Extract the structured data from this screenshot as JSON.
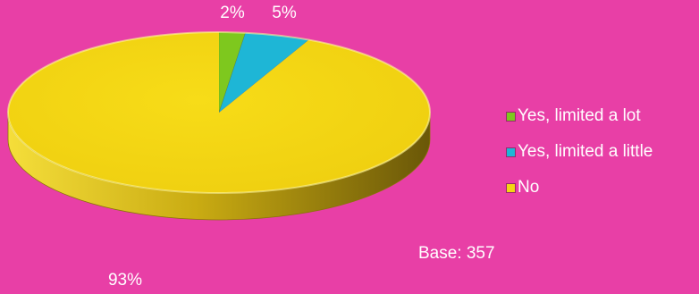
{
  "chart_data": {
    "type": "pie",
    "categories": [
      "Yes, limited a lot",
      "Yes, limited a little",
      "No"
    ],
    "values": [
      2,
      5,
      93
    ],
    "data_labels": [
      "2%",
      "5%",
      "93%"
    ],
    "colors": [
      "#7ec81e",
      "#1eb6d6",
      "#f3d713"
    ],
    "legend_position": "right",
    "three_d": true,
    "annotation": "Base: 357"
  },
  "colors": {
    "background": "#e83fa6",
    "text": "#ffffff"
  }
}
